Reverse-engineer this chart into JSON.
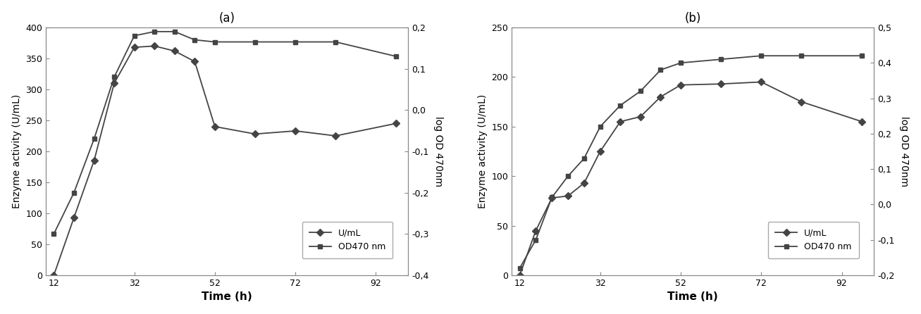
{
  "panel_a": {
    "title": "(a)",
    "time": [
      12,
      17,
      22,
      27,
      32,
      37,
      42,
      47,
      52,
      62,
      72,
      82,
      97
    ],
    "uml": [
      0,
      93,
      185,
      310,
      368,
      370,
      362,
      345,
      240,
      228,
      233,
      225,
      245
    ],
    "od": [
      -0.3,
      -0.2,
      -0.07,
      0.08,
      0.18,
      0.19,
      0.19,
      0.17,
      0.165,
      0.165,
      0.165,
      0.165,
      0.13
    ],
    "ylabel_left": "Enzyme activity (U/mL)",
    "ylabel_right": "log OD 470nm",
    "xlabel": "Time (h)",
    "ylim_left": [
      0,
      400
    ],
    "ylim_right": [
      -0.4,
      0.2
    ],
    "yticks_left": [
      0,
      50,
      100,
      150,
      200,
      250,
      300,
      350,
      400
    ],
    "yticks_right": [
      -0.4,
      -0.3,
      -0.2,
      -0.1,
      0,
      0.1,
      0.2
    ],
    "xticks": [
      12,
      32,
      52,
      72,
      92
    ]
  },
  "panel_b": {
    "title": "(b)",
    "time": [
      12,
      16,
      20,
      24,
      28,
      32,
      37,
      42,
      47,
      52,
      62,
      72,
      82,
      97
    ],
    "uml": [
      0,
      45,
      78,
      80,
      93,
      125,
      155,
      160,
      180,
      192,
      193,
      195,
      175,
      155
    ],
    "od": [
      -0.18,
      -0.1,
      0.02,
      0.08,
      0.13,
      0.22,
      0.28,
      0.32,
      0.38,
      0.4,
      0.41,
      0.42,
      0.42,
      0.42
    ],
    "ylabel_left": "Enzyme activity (U/mL)",
    "ylabel_right": "log OD 470nm",
    "xlabel": "Time (h)",
    "ylim_left": [
      0,
      250
    ],
    "ylim_right": [
      -0.2,
      0.5
    ],
    "yticks_left": [
      0,
      50,
      100,
      150,
      200,
      250
    ],
    "yticks_right": [
      -0.2,
      -0.1,
      0,
      0.1,
      0.2,
      0.3,
      0.4,
      0.5
    ],
    "xticks": [
      12,
      32,
      52,
      72,
      92
    ]
  },
  "line_color": "#444444",
  "marker_diamond": "D",
  "marker_square": "s",
  "marker_size_diamond": 5,
  "marker_size_square": 5,
  "legend_uml": "U/mL",
  "legend_od": "OD470 nm",
  "background_color": "#ffffff"
}
